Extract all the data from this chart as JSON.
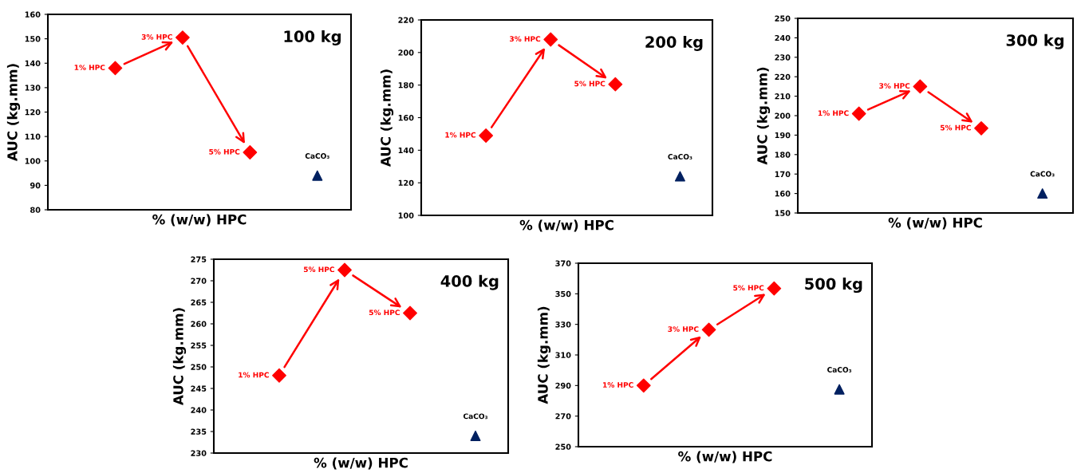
{
  "chart_data": [
    {
      "type": "scatter",
      "title": "100 kg",
      "xlabel": "% (w/w) HPC",
      "ylabel": "AUC (kg.mm)",
      "categories": [
        null,
        null,
        null,
        null
      ],
      "ylim": [
        80,
        160
      ],
      "yticks": [
        80,
        90,
        100,
        110,
        120,
        130,
        140,
        150,
        160
      ],
      "grid": false,
      "tick_labels": "y",
      "series": [
        {
          "color": "#ff0000",
          "marker": "diamond",
          "values": [
            138,
            150.5,
            103.5,
            null
          ]
        },
        {
          "color": "#002060",
          "marker": "triangle",
          "values": [
            null,
            null,
            null,
            94
          ]
        }
      ],
      "annotations": [
        "1% HPC",
        "3% HPC",
        "5% HPC",
        "CaCO₃"
      ]
    },
    {
      "type": "scatter",
      "title": "200 kg",
      "xlabel": "% (w/w) HPC",
      "ylabel": "AUC (kg.mm)",
      "categories": [
        null,
        null,
        null,
        null
      ],
      "ylim": [
        100,
        220
      ],
      "yticks": [
        100,
        120,
        140,
        160,
        180,
        200,
        220
      ],
      "grid": false,
      "tick_labels": "y",
      "series": [
        {
          "color": "#ff0000",
          "marker": "diamond",
          "values": [
            149,
            208,
            180.5,
            null
          ]
        },
        {
          "color": "#002060",
          "marker": "triangle",
          "values": [
            null,
            null,
            null,
            124
          ]
        }
      ],
      "annotations": [
        "1% HPC",
        "3% HPC",
        "5% HPC",
        "CaCO₃"
      ]
    },
    {
      "type": "scatter",
      "title": "300 kg",
      "xlabel": "% (w/w) HPC",
      "ylabel": "AUC (kg.mm)",
      "categories": [
        null,
        null,
        null,
        null
      ],
      "ylim": [
        150,
        250
      ],
      "yticks": [
        150,
        160,
        170,
        180,
        190,
        200,
        210,
        220,
        230,
        240,
        250
      ],
      "grid": false,
      "tick_labels": "y",
      "series": [
        {
          "color": "#ff0000",
          "marker": "diamond",
          "values": [
            201,
            215,
            193.5,
            null
          ]
        },
        {
          "color": "#002060",
          "marker": "triangle",
          "values": [
            null,
            null,
            null,
            160
          ]
        }
      ],
      "annotations": [
        "1% HPC",
        "3% HPC",
        "5% HPC",
        "CaCO₃"
      ]
    },
    {
      "type": "scatter",
      "title": "400 kg",
      "xlabel": "% (w/w) HPC",
      "ylabel": "AUC (kg.mm)",
      "categories": [
        null,
        null,
        null,
        null
      ],
      "ylim": [
        230,
        275
      ],
      "yticks": [
        230,
        235,
        240,
        245,
        250,
        255,
        260,
        265,
        270,
        275
      ],
      "grid": false,
      "tick_labels": "y",
      "series": [
        {
          "color": "#ff0000",
          "marker": "diamond",
          "values": [
            248,
            272.5,
            262.5,
            null
          ]
        },
        {
          "color": "#002060",
          "marker": "triangle",
          "values": [
            null,
            null,
            null,
            234
          ]
        }
      ],
      "annotations": [
        "1% HPC",
        "5% HPC",
        "5% HPC",
        "CaCO₃"
      ]
    },
    {
      "type": "scatter",
      "title": "500 kg",
      "xlabel": "% (w/w) HPC",
      "ylabel": "AUC (kg.mm)",
      "categories": [
        null,
        null,
        null,
        null
      ],
      "ylim": [
        250,
        370
      ],
      "yticks": [
        250,
        270,
        290,
        310,
        330,
        350,
        370
      ],
      "grid": false,
      "tick_labels": "y",
      "series": [
        {
          "color": "#ff0000",
          "marker": "diamond",
          "values": [
            290,
            326.5,
            353.5,
            null
          ]
        },
        {
          "color": "#002060",
          "marker": "triangle",
          "values": [
            null,
            null,
            null,
            287.5
          ]
        }
      ],
      "annotations": [
        "1% HPC",
        "3% HPC",
        "5% HPC",
        "CaCO₃"
      ]
    }
  ]
}
